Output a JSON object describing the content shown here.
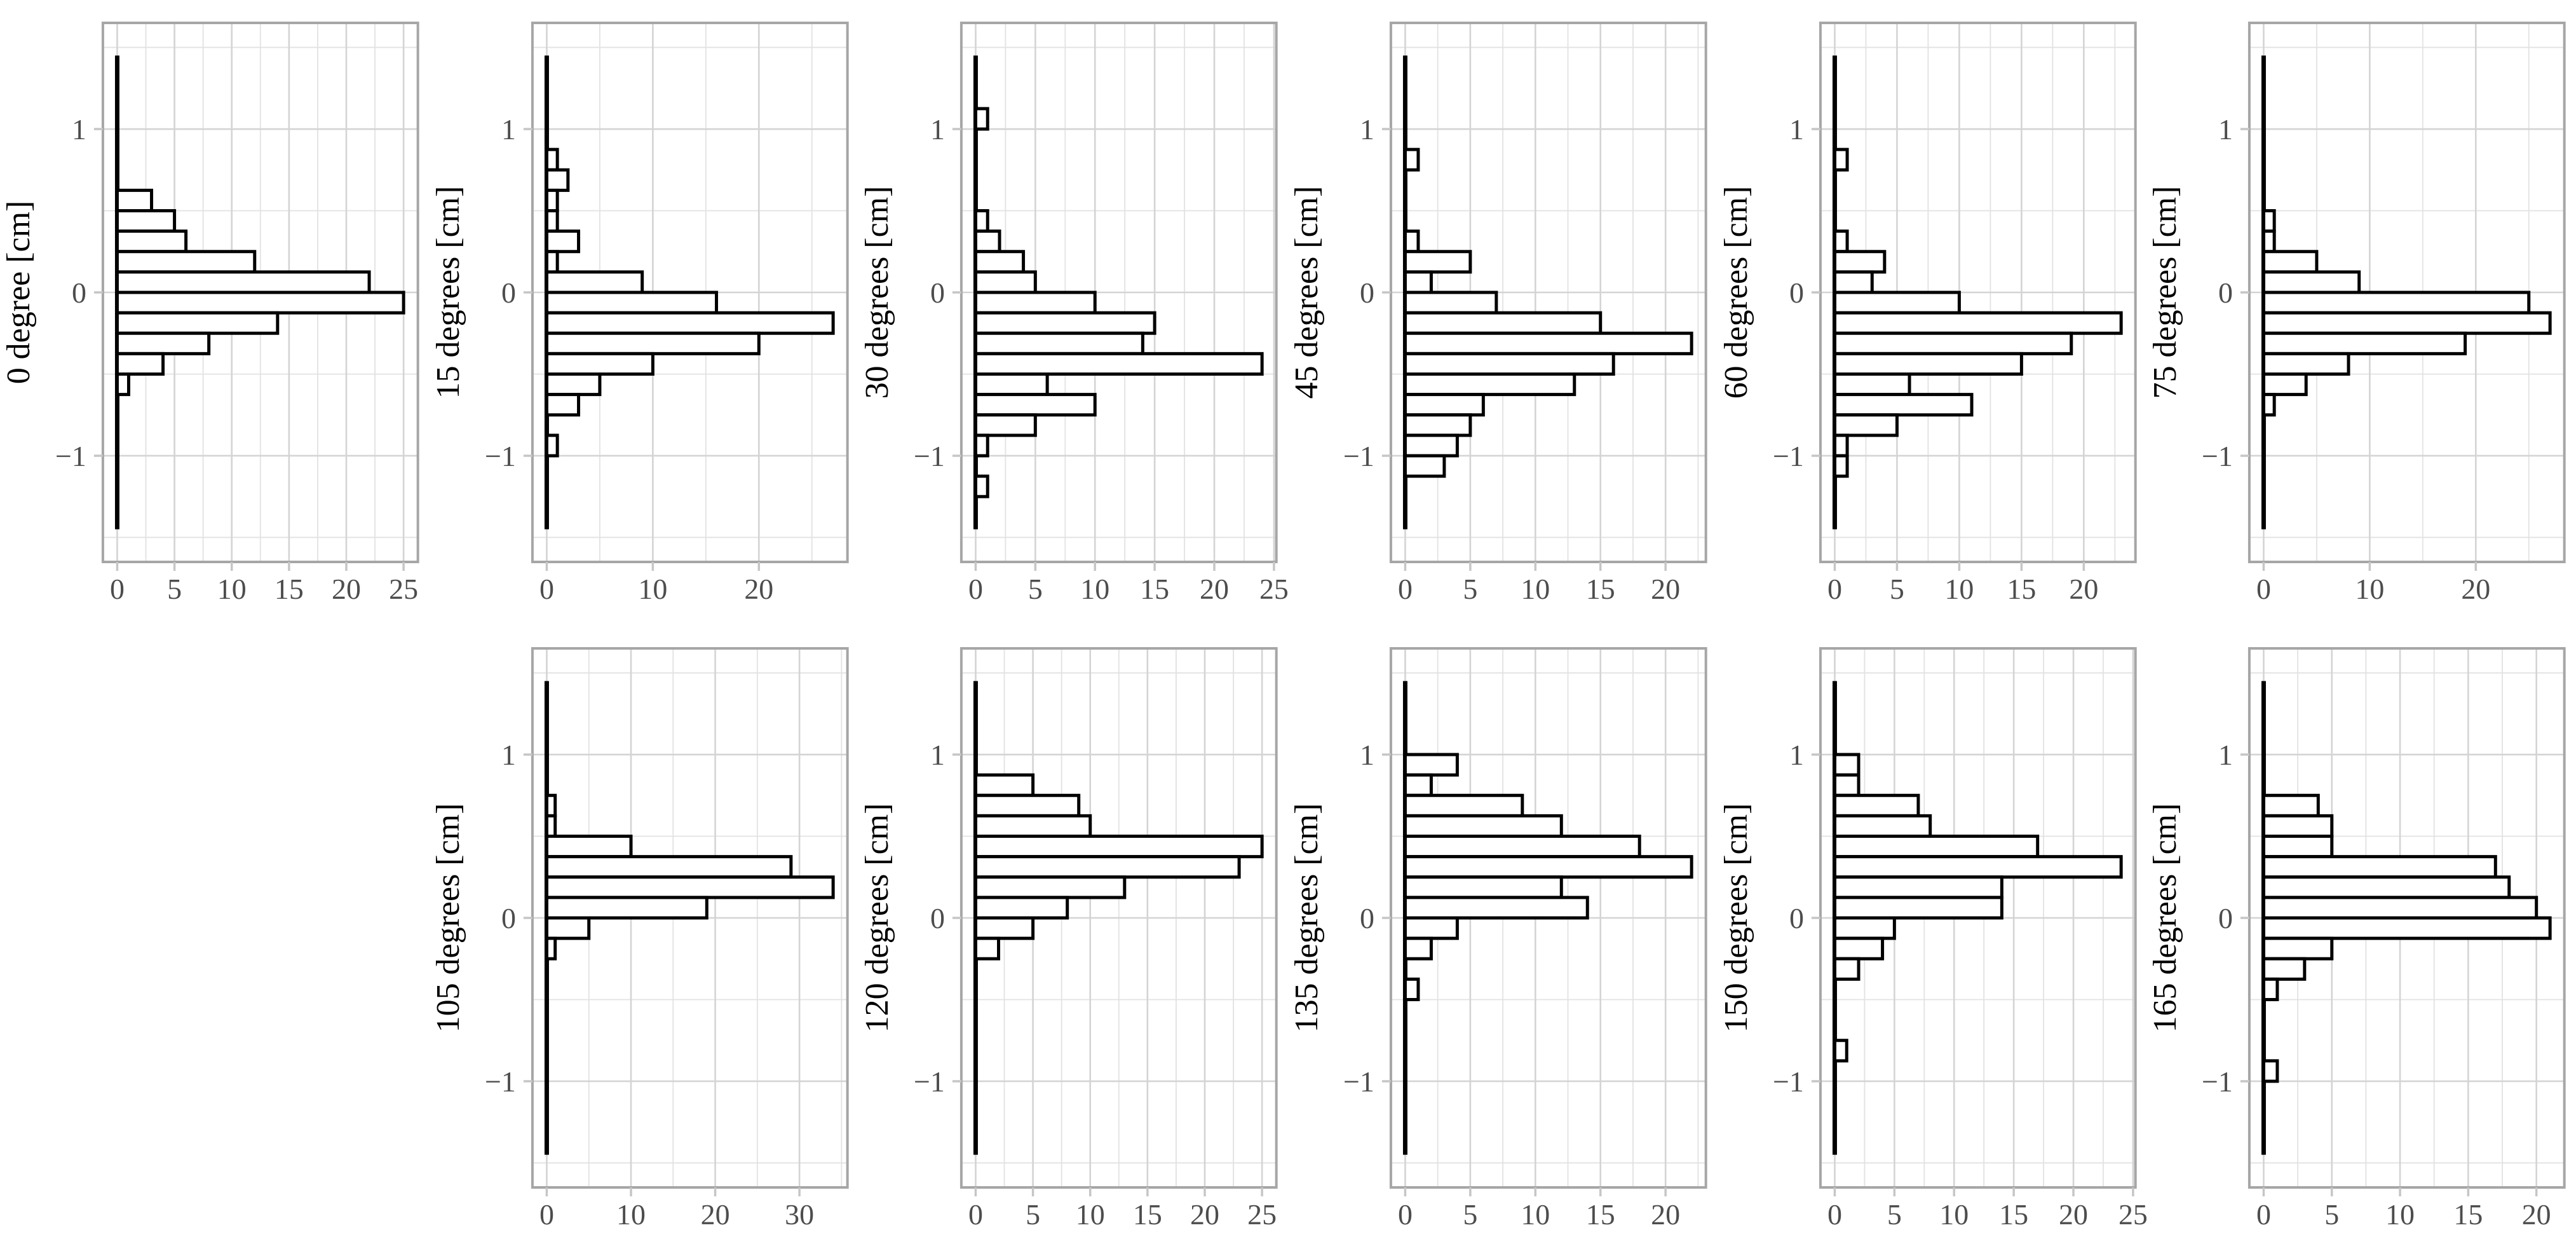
{
  "figure_title": "",
  "style": {
    "background": "#ffffff",
    "bar_fill": "#ffffff",
    "bar_stroke": "#000000",
    "baseline_stroke": "#000000",
    "grid_major": "#d4d4d4",
    "grid_minor": "#e2e2e2",
    "frame": "#a6a6a6",
    "tick_mark": "#c6c6c6",
    "tick_label": "#4d4d4d",
    "axis_title": "#000000"
  },
  "chart_data": {
    "type": "bar",
    "orientation": "horizontal",
    "description": "Grid of horizontal histograms of displacement [cm] at different angles; counts on x-axis, displacement bins of width 0.125 cm on y-axis",
    "bin_width": 0.125,
    "y_axis": {
      "ticks": [
        1,
        0,
        -1
      ],
      "tick_labels": [
        "1",
        "0",
        "−1"
      ],
      "range": [
        -1.65,
        1.65
      ],
      "baseline_span": [
        -1.45,
        1.45
      ],
      "grid_minor": [
        -1.5,
        -0.5,
        0.5,
        1.5
      ]
    },
    "panels": [
      {
        "label": "0 degree [cm]",
        "row": 1,
        "col": 1,
        "x_ticks": [
          0,
          5,
          10,
          15,
          20,
          25
        ],
        "x_max": 25,
        "bins": [
          [
            0.5,
            3
          ],
          [
            0.375,
            5
          ],
          [
            0.25,
            6
          ],
          [
            0.125,
            12
          ],
          [
            0,
            22
          ],
          [
            -0.125,
            25
          ],
          [
            -0.25,
            14
          ],
          [
            -0.375,
            8
          ],
          [
            -0.5,
            4
          ],
          [
            -0.625,
            1
          ]
        ]
      },
      {
        "label": "15 degrees [cm]",
        "row": 1,
        "col": 2,
        "x_ticks": [
          0,
          10,
          20
        ],
        "x_max": 27,
        "bins": [
          [
            0.75,
            1
          ],
          [
            0.625,
            2
          ],
          [
            0.5,
            1
          ],
          [
            0.375,
            1
          ],
          [
            0.25,
            3
          ],
          [
            0.125,
            1
          ],
          [
            0,
            9
          ],
          [
            -0.125,
            16
          ],
          [
            -0.25,
            27
          ],
          [
            -0.375,
            20
          ],
          [
            -0.5,
            10
          ],
          [
            -0.625,
            5
          ],
          [
            -0.75,
            3
          ],
          [
            -1,
            1
          ]
        ]
      },
      {
        "label": "30 degrees [cm]",
        "row": 1,
        "col": 3,
        "x_ticks": [
          0,
          5,
          10,
          15,
          20,
          25
        ],
        "x_max": 24,
        "bins": [
          [
            1,
            1
          ],
          [
            0.375,
            1
          ],
          [
            0.25,
            2
          ],
          [
            0.125,
            4
          ],
          [
            0,
            5
          ],
          [
            -0.125,
            10
          ],
          [
            -0.25,
            15
          ],
          [
            -0.375,
            14
          ],
          [
            -0.5,
            24
          ],
          [
            -0.625,
            6
          ],
          [
            -0.75,
            10
          ],
          [
            -0.875,
            5
          ],
          [
            -1,
            1
          ],
          [
            -1.25,
            1
          ]
        ]
      },
      {
        "label": "45 degrees [cm]",
        "row": 1,
        "col": 4,
        "x_ticks": [
          0,
          5,
          10,
          15,
          20
        ],
        "x_max": 22,
        "bins": [
          [
            0.75,
            1
          ],
          [
            0.25,
            1
          ],
          [
            0.125,
            5
          ],
          [
            0,
            2
          ],
          [
            -0.125,
            7
          ],
          [
            -0.25,
            15
          ],
          [
            -0.375,
            22
          ],
          [
            -0.5,
            16
          ],
          [
            -0.625,
            13
          ],
          [
            -0.75,
            6
          ],
          [
            -0.875,
            5
          ],
          [
            -1,
            4
          ],
          [
            -1.125,
            3
          ]
        ]
      },
      {
        "label": "60 degrees [cm]",
        "row": 1,
        "col": 5,
        "x_ticks": [
          0,
          5,
          10,
          15,
          20
        ],
        "x_max": 23,
        "bins": [
          [
            0.75,
            1
          ],
          [
            0.25,
            1
          ],
          [
            0.125,
            4
          ],
          [
            0,
            3
          ],
          [
            -0.125,
            10
          ],
          [
            -0.25,
            23
          ],
          [
            -0.375,
            19
          ],
          [
            -0.5,
            15
          ],
          [
            -0.625,
            6
          ],
          [
            -0.75,
            11
          ],
          [
            -0.875,
            5
          ],
          [
            -1,
            1
          ],
          [
            -1.125,
            1
          ]
        ]
      },
      {
        "label": "75 degrees [cm]",
        "row": 1,
        "col": 6,
        "x_ticks": [
          0,
          10,
          20
        ],
        "x_max": 27,
        "bins": [
          [
            0.375,
            1
          ],
          [
            0.25,
            1
          ],
          [
            0.125,
            5
          ],
          [
            0,
            9
          ],
          [
            -0.125,
            25
          ],
          [
            -0.25,
            27
          ],
          [
            -0.375,
            19
          ],
          [
            -0.5,
            8
          ],
          [
            -0.625,
            4
          ],
          [
            -0.75,
            1
          ]
        ]
      },
      {
        "label": "105 degrees [cm]",
        "row": 2,
        "col": 2,
        "x_ticks": [
          0,
          10,
          20,
          30
        ],
        "x_max": 34,
        "bins": [
          [
            0.625,
            1
          ],
          [
            0.5,
            1
          ],
          [
            0.375,
            10
          ],
          [
            0.25,
            29
          ],
          [
            0.125,
            34
          ],
          [
            0,
            19
          ],
          [
            -0.125,
            5
          ],
          [
            -0.25,
            1
          ]
        ]
      },
      {
        "label": "120 degrees [cm]",
        "row": 2,
        "col": 3,
        "x_ticks": [
          0,
          5,
          10,
          15,
          20,
          25
        ],
        "x_max": 25,
        "bins": [
          [
            0.75,
            5
          ],
          [
            0.625,
            9
          ],
          [
            0.5,
            10
          ],
          [
            0.375,
            25
          ],
          [
            0.25,
            23
          ],
          [
            0.125,
            13
          ],
          [
            0,
            8
          ],
          [
            -0.125,
            5
          ],
          [
            -0.25,
            2
          ]
        ]
      },
      {
        "label": "135 degrees [cm]",
        "row": 2,
        "col": 4,
        "x_ticks": [
          0,
          5,
          10,
          15,
          20
        ],
        "x_max": 22,
        "bins": [
          [
            0.875,
            4
          ],
          [
            0.75,
            2
          ],
          [
            0.625,
            9
          ],
          [
            0.5,
            12
          ],
          [
            0.375,
            18
          ],
          [
            0.25,
            22
          ],
          [
            0.125,
            12
          ],
          [
            0,
            14
          ],
          [
            -0.125,
            4
          ],
          [
            -0.25,
            2
          ],
          [
            -0.5,
            1
          ]
        ]
      },
      {
        "label": "150 degrees [cm]",
        "row": 2,
        "col": 5,
        "x_ticks": [
          0,
          5,
          10,
          15,
          20,
          25
        ],
        "x_max": 24,
        "bins": [
          [
            0.875,
            2
          ],
          [
            0.75,
            2
          ],
          [
            0.625,
            7
          ],
          [
            0.5,
            8
          ],
          [
            0.375,
            17
          ],
          [
            0.25,
            24
          ],
          [
            0.125,
            14
          ],
          [
            0,
            14
          ],
          [
            -0.125,
            5
          ],
          [
            -0.25,
            4
          ],
          [
            -0.375,
            2
          ],
          [
            -0.875,
            1
          ]
        ]
      },
      {
        "label": "165 degrees [cm]",
        "row": 2,
        "col": 6,
        "x_ticks": [
          0,
          5,
          10,
          15,
          20
        ],
        "x_max": 21,
        "bins": [
          [
            0.625,
            4
          ],
          [
            0.5,
            5
          ],
          [
            0.375,
            5
          ],
          [
            0.25,
            17
          ],
          [
            0.125,
            18
          ],
          [
            0,
            20
          ],
          [
            -0.125,
            21
          ],
          [
            -0.25,
            5
          ],
          [
            -0.375,
            3
          ],
          [
            -0.5,
            1
          ],
          [
            -1,
            1
          ]
        ]
      }
    ]
  }
}
